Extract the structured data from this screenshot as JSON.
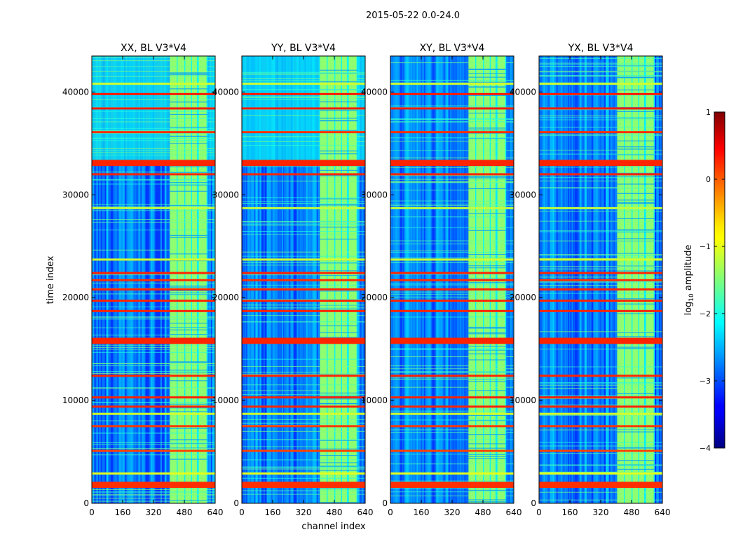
{
  "chart_data": {
    "type": "heatmap",
    "suptitle": "2015-05-22 0.0-24.0",
    "xlabel": "channel index",
    "ylabel": "time index",
    "xlim": [
      0,
      640
    ],
    "ylim": [
      0,
      43500
    ],
    "x_ticks": [
      0,
      160,
      320,
      480,
      640
    ],
    "x_tick_labels": [
      "0",
      "160",
      "320",
      "480",
      "640"
    ],
    "y_ticks": [
      0,
      10000,
      20000,
      30000,
      40000
    ],
    "y_tick_labels": [
      "0",
      "10000",
      "20000",
      "30000",
      "40000"
    ],
    "panels": [
      {
        "title": "XX, BL V3*V4",
        "pol": "XX",
        "upper_band_level": -2.0
      },
      {
        "title": "YY, BL V3*V4",
        "pol": "YY",
        "upper_band_level": -2.05
      },
      {
        "title": "XY, BL V3*V4",
        "pol": "XY",
        "upper_band_level": -3.0
      },
      {
        "title": "YX, BL V3*V4",
        "pol": "YX",
        "upper_band_level": -3.0
      }
    ],
    "base_level": -3.1,
    "bright_channel_range": [
      405,
      600
    ],
    "bright_channel_level": -1.3,
    "hot_rows": [
      {
        "t": 1800,
        "level": 0.2
      },
      {
        "t": 2900,
        "level": -1.0
      },
      {
        "t": 5100,
        "level": 0.05
      },
      {
        "t": 7500,
        "level": 0.1
      },
      {
        "t": 8700,
        "level": -1.1
      },
      {
        "t": 9400,
        "level": 0.2
      },
      {
        "t": 10300,
        "level": 0.2
      },
      {
        "t": 12400,
        "level": 0.2
      },
      {
        "t": 15800,
        "level": 0.25
      },
      {
        "t": 18700,
        "level": 0.2
      },
      {
        "t": 19700,
        "level": 0.2
      },
      {
        "t": 20800,
        "level": 0.2
      },
      {
        "t": 21700,
        "level": 0.15
      },
      {
        "t": 22400,
        "level": 0.2
      },
      {
        "t": 23700,
        "level": -1.1
      },
      {
        "t": 28700,
        "level": -1.2
      },
      {
        "t": 32000,
        "level": 0.2
      },
      {
        "t": 33100,
        "level": 0.2
      },
      {
        "t": 36100,
        "level": 0.15
      },
      {
        "t": 38400,
        "level": 0.25
      },
      {
        "t": 39800,
        "level": 0.25
      },
      {
        "t": 40800,
        "level": -1.1
      }
    ],
    "colorbar": {
      "label": "log10 amplitude",
      "label_base": "log",
      "label_sub": "10",
      "label_rest": " amplitude",
      "range": [
        -4,
        1
      ],
      "ticks": [
        1,
        0,
        -1,
        -2,
        -3,
        -4
      ],
      "tick_labels": [
        "1",
        "0",
        "−1",
        "−2",
        "−3",
        "−4"
      ]
    }
  }
}
